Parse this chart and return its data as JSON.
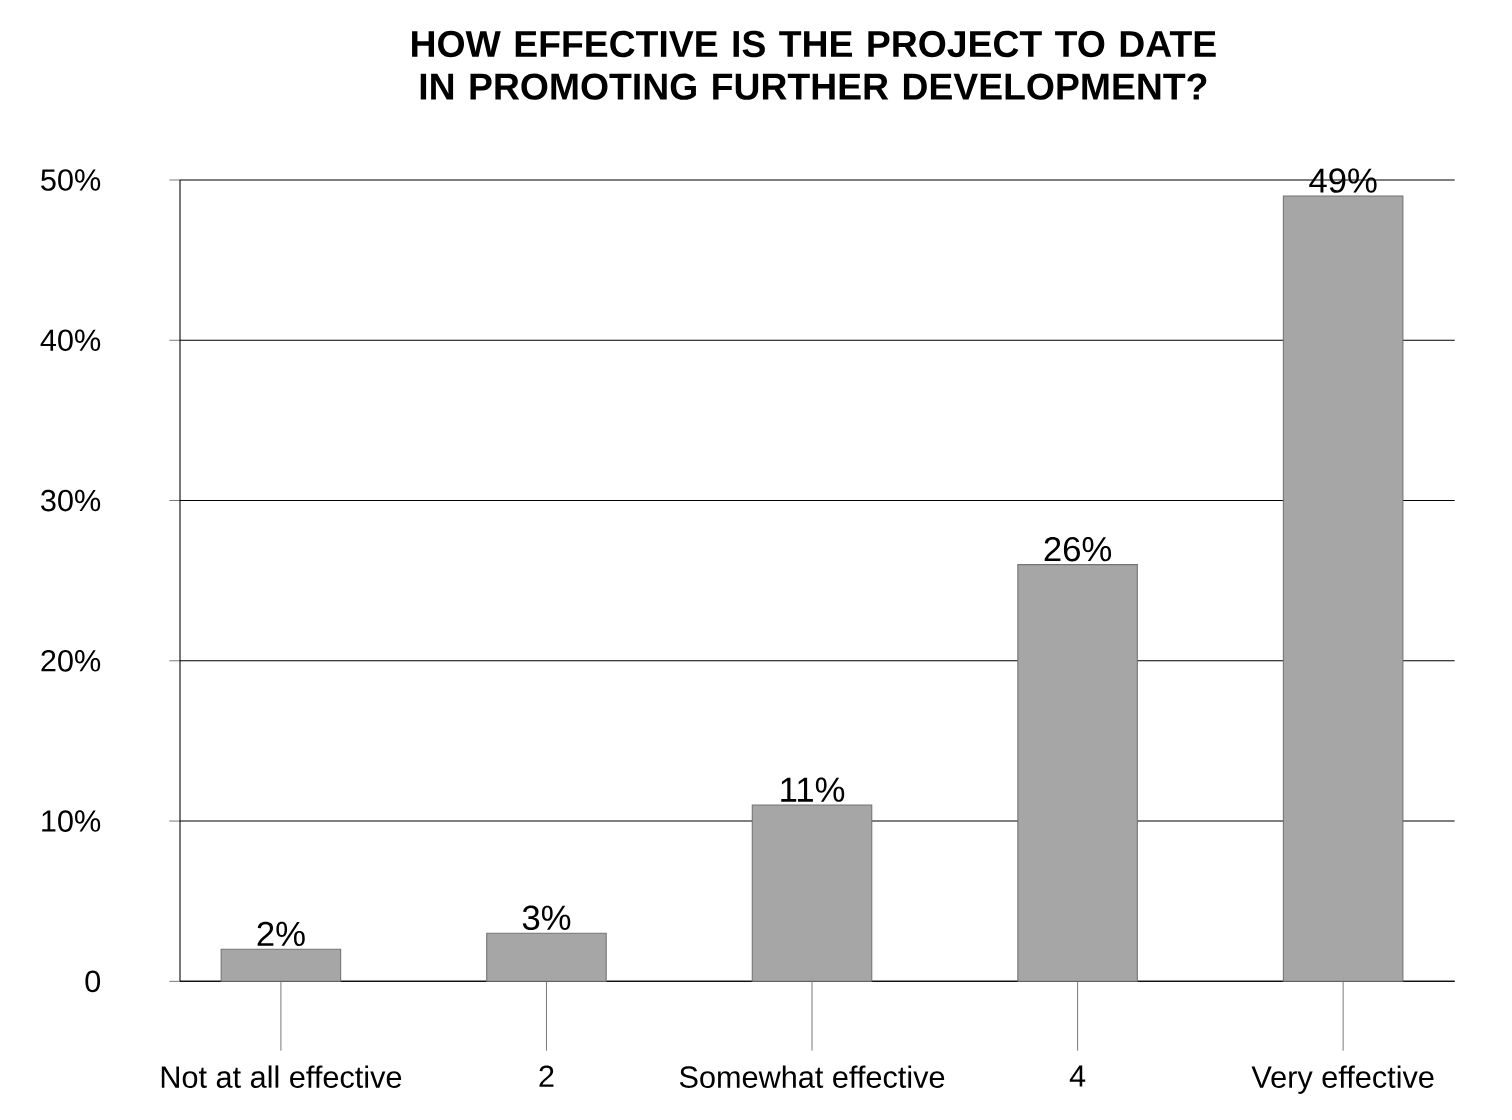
{
  "chart_data": {
    "type": "bar",
    "title": "HOW EFFECTIVE IS THE PROJECT TO DATE IN PROMOTING FURTHER DEVELOPMENT?",
    "categories": [
      "Not at all effective",
      "2",
      "Somewhat effective",
      "4",
      "Very effective"
    ],
    "values": [
      2,
      3,
      11,
      26,
      49
    ],
    "value_labels": [
      "2%",
      "3%",
      "11%",
      "26%",
      "49%"
    ],
    "color": "#a6a6a6",
    "ylim": [
      0,
      50
    ],
    "yticks": [
      0,
      {
        "value": 10,
        "label": "10%"
      },
      {
        "value": 20,
        "label": "20%"
      },
      {
        "value": 30,
        "label": "30%"
      },
      {
        "value": 40,
        "label": "40%"
      },
      {
        "value": 50,
        "label": "50%"
      }
    ],
    "grid": "y"
  }
}
